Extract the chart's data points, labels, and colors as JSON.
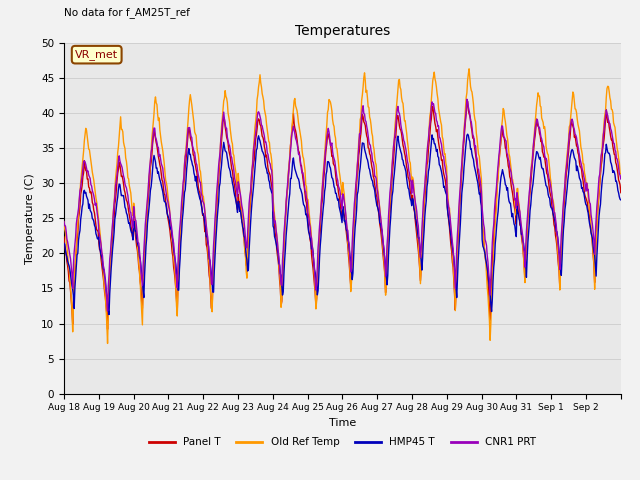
{
  "title": "Temperatures",
  "xlabel": "Time",
  "ylabel": "Temperature (C)",
  "ylim": [
    0,
    50
  ],
  "bg_color": "#e8e8e8",
  "fig_bg_color": "#f2f2f2",
  "annotation_text": "No data for f_AM25T_ref",
  "vr_met_label": "VR_met",
  "legend": [
    "Panel T",
    "Old Ref Temp",
    "HMP45 T",
    "CNR1 PRT"
  ],
  "colors": [
    "#cc0000",
    "#ff9900",
    "#0000bb",
    "#9900bb"
  ],
  "linewidth": 1.0,
  "num_days": 16,
  "tick_labels": [
    "Aug 18",
    "Aug 19",
    "Aug 20",
    "Aug 21",
    "Aug 22",
    "Aug 23",
    "Aug 24",
    "Aug 25",
    "Aug 26",
    "Aug 27",
    "Aug 28",
    "Aug 29",
    "Aug 30",
    "Aug 31",
    "Sep 1",
    "Sep 2"
  ],
  "grid_color": "#d0d0d0",
  "yticks": [
    0,
    5,
    10,
    15,
    20,
    25,
    30,
    35,
    40,
    45,
    50
  ]
}
